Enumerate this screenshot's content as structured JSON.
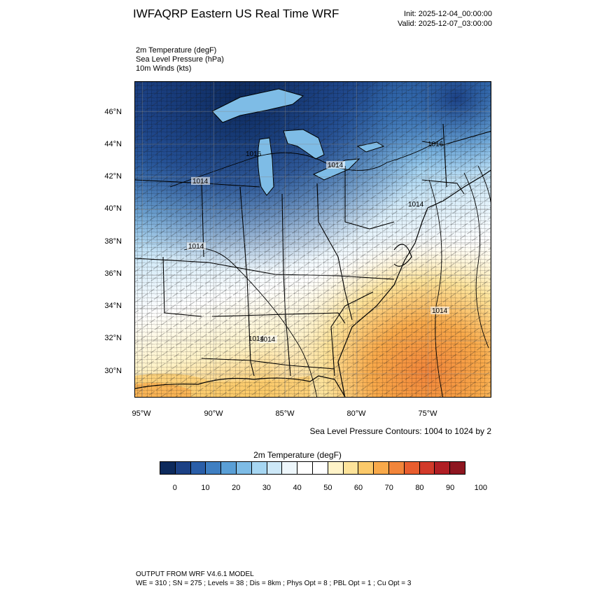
{
  "header": {
    "title": "IWFAQRP Eastern US Real Time WRF",
    "init": "Init: 2025-12-04_00:00:00",
    "valid": "Valid: 2025-12-07_03:00:00"
  },
  "fields": [
    "2m Temperature   (degF)",
    "Sea Level Pressure   (hPa)",
    "10m Winds   (kts)"
  ],
  "map": {
    "latitude_labels": [
      "46°N",
      "44°N",
      "42°N",
      "40°N",
      "38°N",
      "36°N",
      "34°N",
      "32°N",
      "30°N"
    ],
    "longitude_labels": [
      "95°W",
      "90°W",
      "85°W",
      "80°W",
      "75°W"
    ],
    "isobar_labels": [
      "1014",
      "1014",
      "1014",
      "1014",
      "1014",
      "1016",
      "1016",
      "1014",
      "1014"
    ],
    "extent": {
      "lon_min": -95.5,
      "lon_max": -70.5,
      "lat_min": 28.5,
      "lat_max": 47.8
    }
  },
  "contour_note": "Sea Level Pressure Contours: 1004 to 1024 by 2",
  "colorbar": {
    "title": "2m Temperature  (degF)",
    "labels": [
      "0",
      "10",
      "20",
      "30",
      "40",
      "50",
      "60",
      "70",
      "80",
      "90",
      "100"
    ],
    "colors": [
      "#0d2a5c",
      "#1c4185",
      "#2a5ea8",
      "#3f7fc2",
      "#5a9fd6",
      "#7ebce6",
      "#a6d6f2",
      "#cde8f8",
      "#eef7fc",
      "#ffffff",
      "#ffffff",
      "#fff3c8",
      "#fde39a",
      "#fbc96a",
      "#f8a94a",
      "#f2853a",
      "#e85d2e",
      "#d23a2a",
      "#b01e24",
      "#8e1620"
    ]
  },
  "footer": {
    "line1": "OUTPUT FROM WRF V4.6.1 MODEL",
    "line2": "WE = 310 ; SN = 275 ; Levels = 38 ; Dis = 8km ; Phys Opt = 8 ; PBL Opt = 1 ; Cu Opt = 3"
  }
}
